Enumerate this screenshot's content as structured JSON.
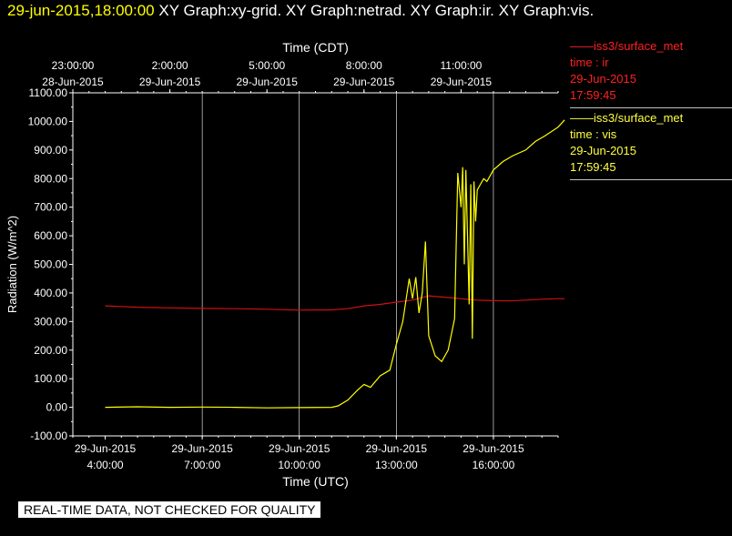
{
  "header": {
    "timestamp": "29-jun-2015,18:00:00",
    "titles": "XY Graph:xy-grid.  XY Graph:netrad.  XY Graph:ir.  XY Graph:vis."
  },
  "legend": [
    {
      "name": "iss3/surface_met",
      "var": "time : ir",
      "date": "29-Jun-2015",
      "time": "17:59:45",
      "color": "#ff2020"
    },
    {
      "name": "iss3/surface_met",
      "var": "time : vis",
      "date": "29-Jun-2015",
      "time": "17:59:45",
      "color": "#ffff40"
    }
  ],
  "notice": "REAL-TIME DATA, NOT CHECKED FOR QUALITY",
  "colors": {
    "ir": "#d01010",
    "vis": "#ffff00",
    "grid": "#ffffff",
    "axes": "#ffffff"
  },
  "chart_data": {
    "type": "line",
    "title": "",
    "xlabel_top": "Time (CDT)",
    "xlabel": "Time (UTC)",
    "ylabel": "Radiation (W/m^2)",
    "xlim": [
      3.0,
      18.0
    ],
    "ylim": [
      -100,
      1100
    ],
    "yticks": [
      "-100.00",
      "0.00",
      "100.00",
      "200.00",
      "300.00",
      "400.00",
      "500.00",
      "600.00",
      "700.00",
      "800.00",
      "900.00",
      "1000.00",
      "1100.00"
    ],
    "xticks_top": [
      {
        "x": 3,
        "time": "23:00:00",
        "date": "28-Jun-2015"
      },
      {
        "x": 6,
        "time": "2:00:00",
        "date": "29-Jun-2015"
      },
      {
        "x": 9,
        "time": "5:00:00",
        "date": "29-Jun-2015"
      },
      {
        "x": 12,
        "time": "8:00:00",
        "date": "29-Jun-2015"
      },
      {
        "x": 15,
        "time": "11:00:00",
        "date": "29-Jun-2015"
      }
    ],
    "xticks_bottom": [
      {
        "x": 4,
        "date": "29-Jun-2015",
        "time": "4:00:00"
      },
      {
        "x": 7,
        "date": "29-Jun-2015",
        "time": "7:00:00"
      },
      {
        "x": 10,
        "date": "29-Jun-2015",
        "time": "10:00:00"
      },
      {
        "x": 13,
        "date": "29-Jun-2015",
        "time": "13:00:00"
      },
      {
        "x": 16,
        "date": "29-Jun-2015",
        "time": "16:00:00"
      }
    ],
    "grid_x": [
      7,
      10,
      13,
      16
    ],
    "series": [
      {
        "name": "ir",
        "key": "ir",
        "x": [
          4.0,
          5.0,
          6.0,
          7.0,
          8.0,
          9.0,
          10.0,
          11.0,
          11.5,
          12.0,
          12.5,
          13.0,
          13.5,
          14.0,
          14.5,
          15.0,
          15.5,
          16.0,
          16.5,
          17.0,
          17.5,
          18.0,
          18.2
        ],
        "y": [
          355,
          350,
          348,
          346,
          345,
          343,
          340,
          341,
          345,
          355,
          360,
          368,
          375,
          390,
          385,
          380,
          375,
          373,
          372,
          375,
          378,
          380,
          380
        ]
      },
      {
        "name": "vis",
        "key": "vis",
        "x": [
          4.0,
          5.0,
          6.0,
          7.0,
          8.0,
          9.0,
          10.0,
          11.0,
          11.2,
          11.5,
          11.8,
          12.0,
          12.2,
          12.5,
          12.8,
          13.0,
          13.2,
          13.4,
          13.5,
          13.6,
          13.7,
          13.8,
          13.9,
          14.0,
          14.2,
          14.4,
          14.6,
          14.8,
          14.9,
          15.0,
          15.05,
          15.1,
          15.15,
          15.2,
          15.25,
          15.3,
          15.35,
          15.4,
          15.45,
          15.5,
          15.6,
          15.7,
          15.8,
          15.9,
          16.0,
          16.3,
          16.6,
          17.0,
          17.3,
          17.6,
          18.0,
          18.2
        ],
        "y": [
          0,
          2,
          0,
          1,
          0,
          -2,
          -1,
          0,
          5,
          25,
          60,
          80,
          70,
          110,
          130,
          220,
          300,
          450,
          380,
          455,
          330,
          400,
          580,
          250,
          180,
          160,
          200,
          310,
          820,
          700,
          840,
          500,
          830,
          600,
          360,
          780,
          240,
          790,
          650,
          760,
          780,
          800,
          790,
          810,
          830,
          860,
          880,
          900,
          930,
          950,
          980,
          1005
        ]
      }
    ]
  }
}
